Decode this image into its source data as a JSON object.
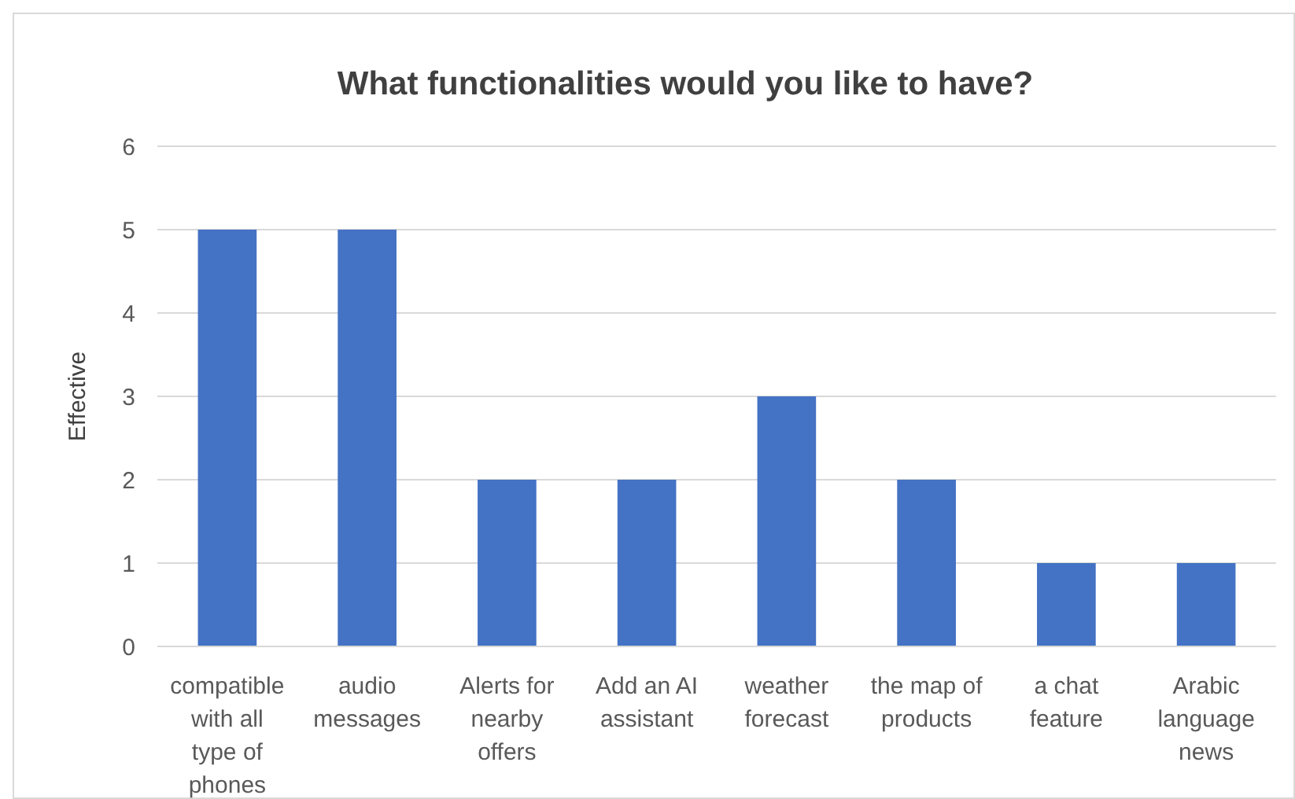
{
  "chart_data": {
    "type": "bar",
    "title": "What functionalities would you like to have?",
    "ylabel": "Effective",
    "categories": [
      "compatible with all type of phones",
      "audio messages",
      "Alerts for nearby offers",
      "Add an AI assistant",
      "weather forecast",
      "the map of products",
      "a chat feature",
      "Arabic language news"
    ],
    "values": [
      5,
      5,
      2,
      2,
      3,
      2,
      1,
      1
    ],
    "color": "#4472c4",
    "ylim": [
      0,
      6
    ],
    "yticks": [
      0,
      1,
      2,
      3,
      4,
      5,
      6
    ],
    "grid": "y"
  }
}
